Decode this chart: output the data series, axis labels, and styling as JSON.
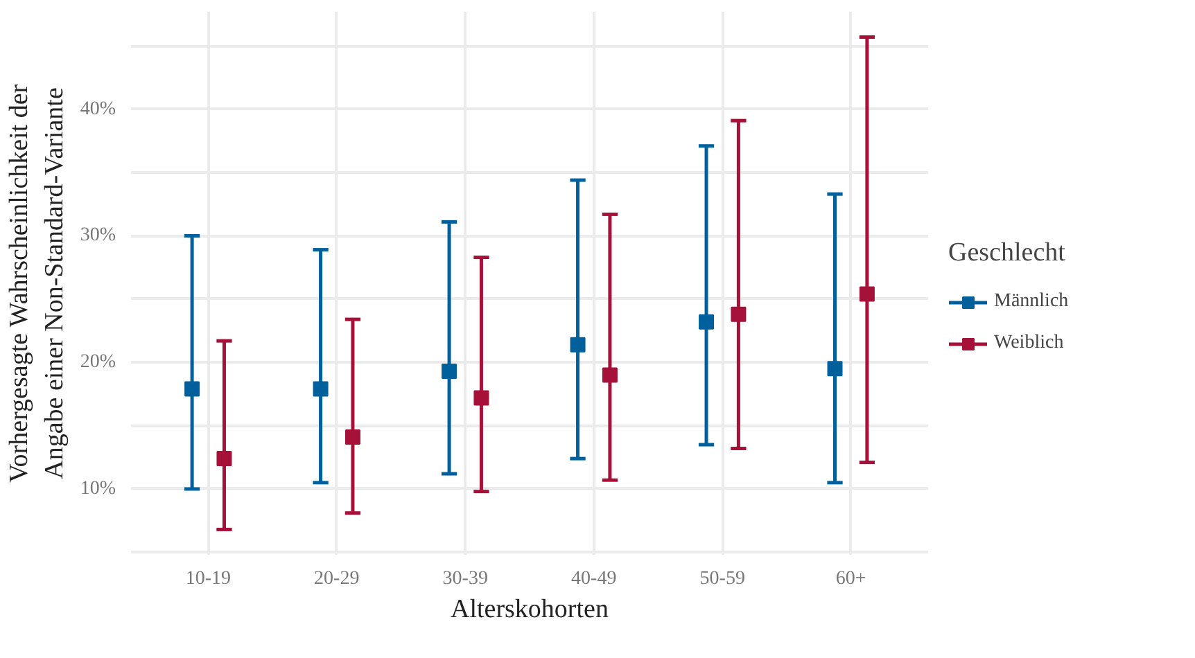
{
  "chart_data": {
    "type": "scatter",
    "xlabel": "Alterskohorten",
    "ylabel": "Vorhergesagte Wahrscheinlichkeit der\nAngabe einer Non-Standard-Variante",
    "legend_title": "Geschlecht",
    "legend": "right",
    "marker": "square",
    "grid": true,
    "categories": [
      "10-19",
      "20-29",
      "30-39",
      "40-49",
      "50-59",
      "60+"
    ],
    "ylim": [
      4.8,
      47.7
    ],
    "yticks": [
      {
        "value": 5,
        "label": null
      },
      {
        "value": 10,
        "label": "10%"
      },
      {
        "value": 15,
        "label": null
      },
      {
        "value": 20,
        "label": "20%"
      },
      {
        "value": 25,
        "label": null
      },
      {
        "value": 30,
        "label": "30%"
      },
      {
        "value": 35,
        "label": null
      },
      {
        "value": 40,
        "label": "40%"
      },
      {
        "value": 45,
        "label": null
      }
    ],
    "series": [
      {
        "name": "Männlich",
        "color": "#00609c",
        "values": [
          17.9,
          17.9,
          19.3,
          21.4,
          23.2,
          19.5
        ],
        "errors": [
          [
            10.0,
            30.0
          ],
          [
            10.5,
            28.9
          ],
          [
            11.2,
            31.1
          ],
          [
            12.4,
            34.4
          ],
          [
            13.5,
            37.1
          ],
          [
            10.5,
            33.3
          ]
        ]
      },
      {
        "name": "Weiblich",
        "color": "#a6113a",
        "values": [
          12.4,
          14.1,
          17.2,
          19.0,
          23.8,
          25.4
        ],
        "errors": [
          [
            6.8,
            21.7
          ],
          [
            8.1,
            23.4
          ],
          [
            9.8,
            28.3
          ],
          [
            10.7,
            31.7
          ],
          [
            13.2,
            39.1
          ],
          [
            12.1,
            45.7
          ]
        ]
      }
    ]
  }
}
